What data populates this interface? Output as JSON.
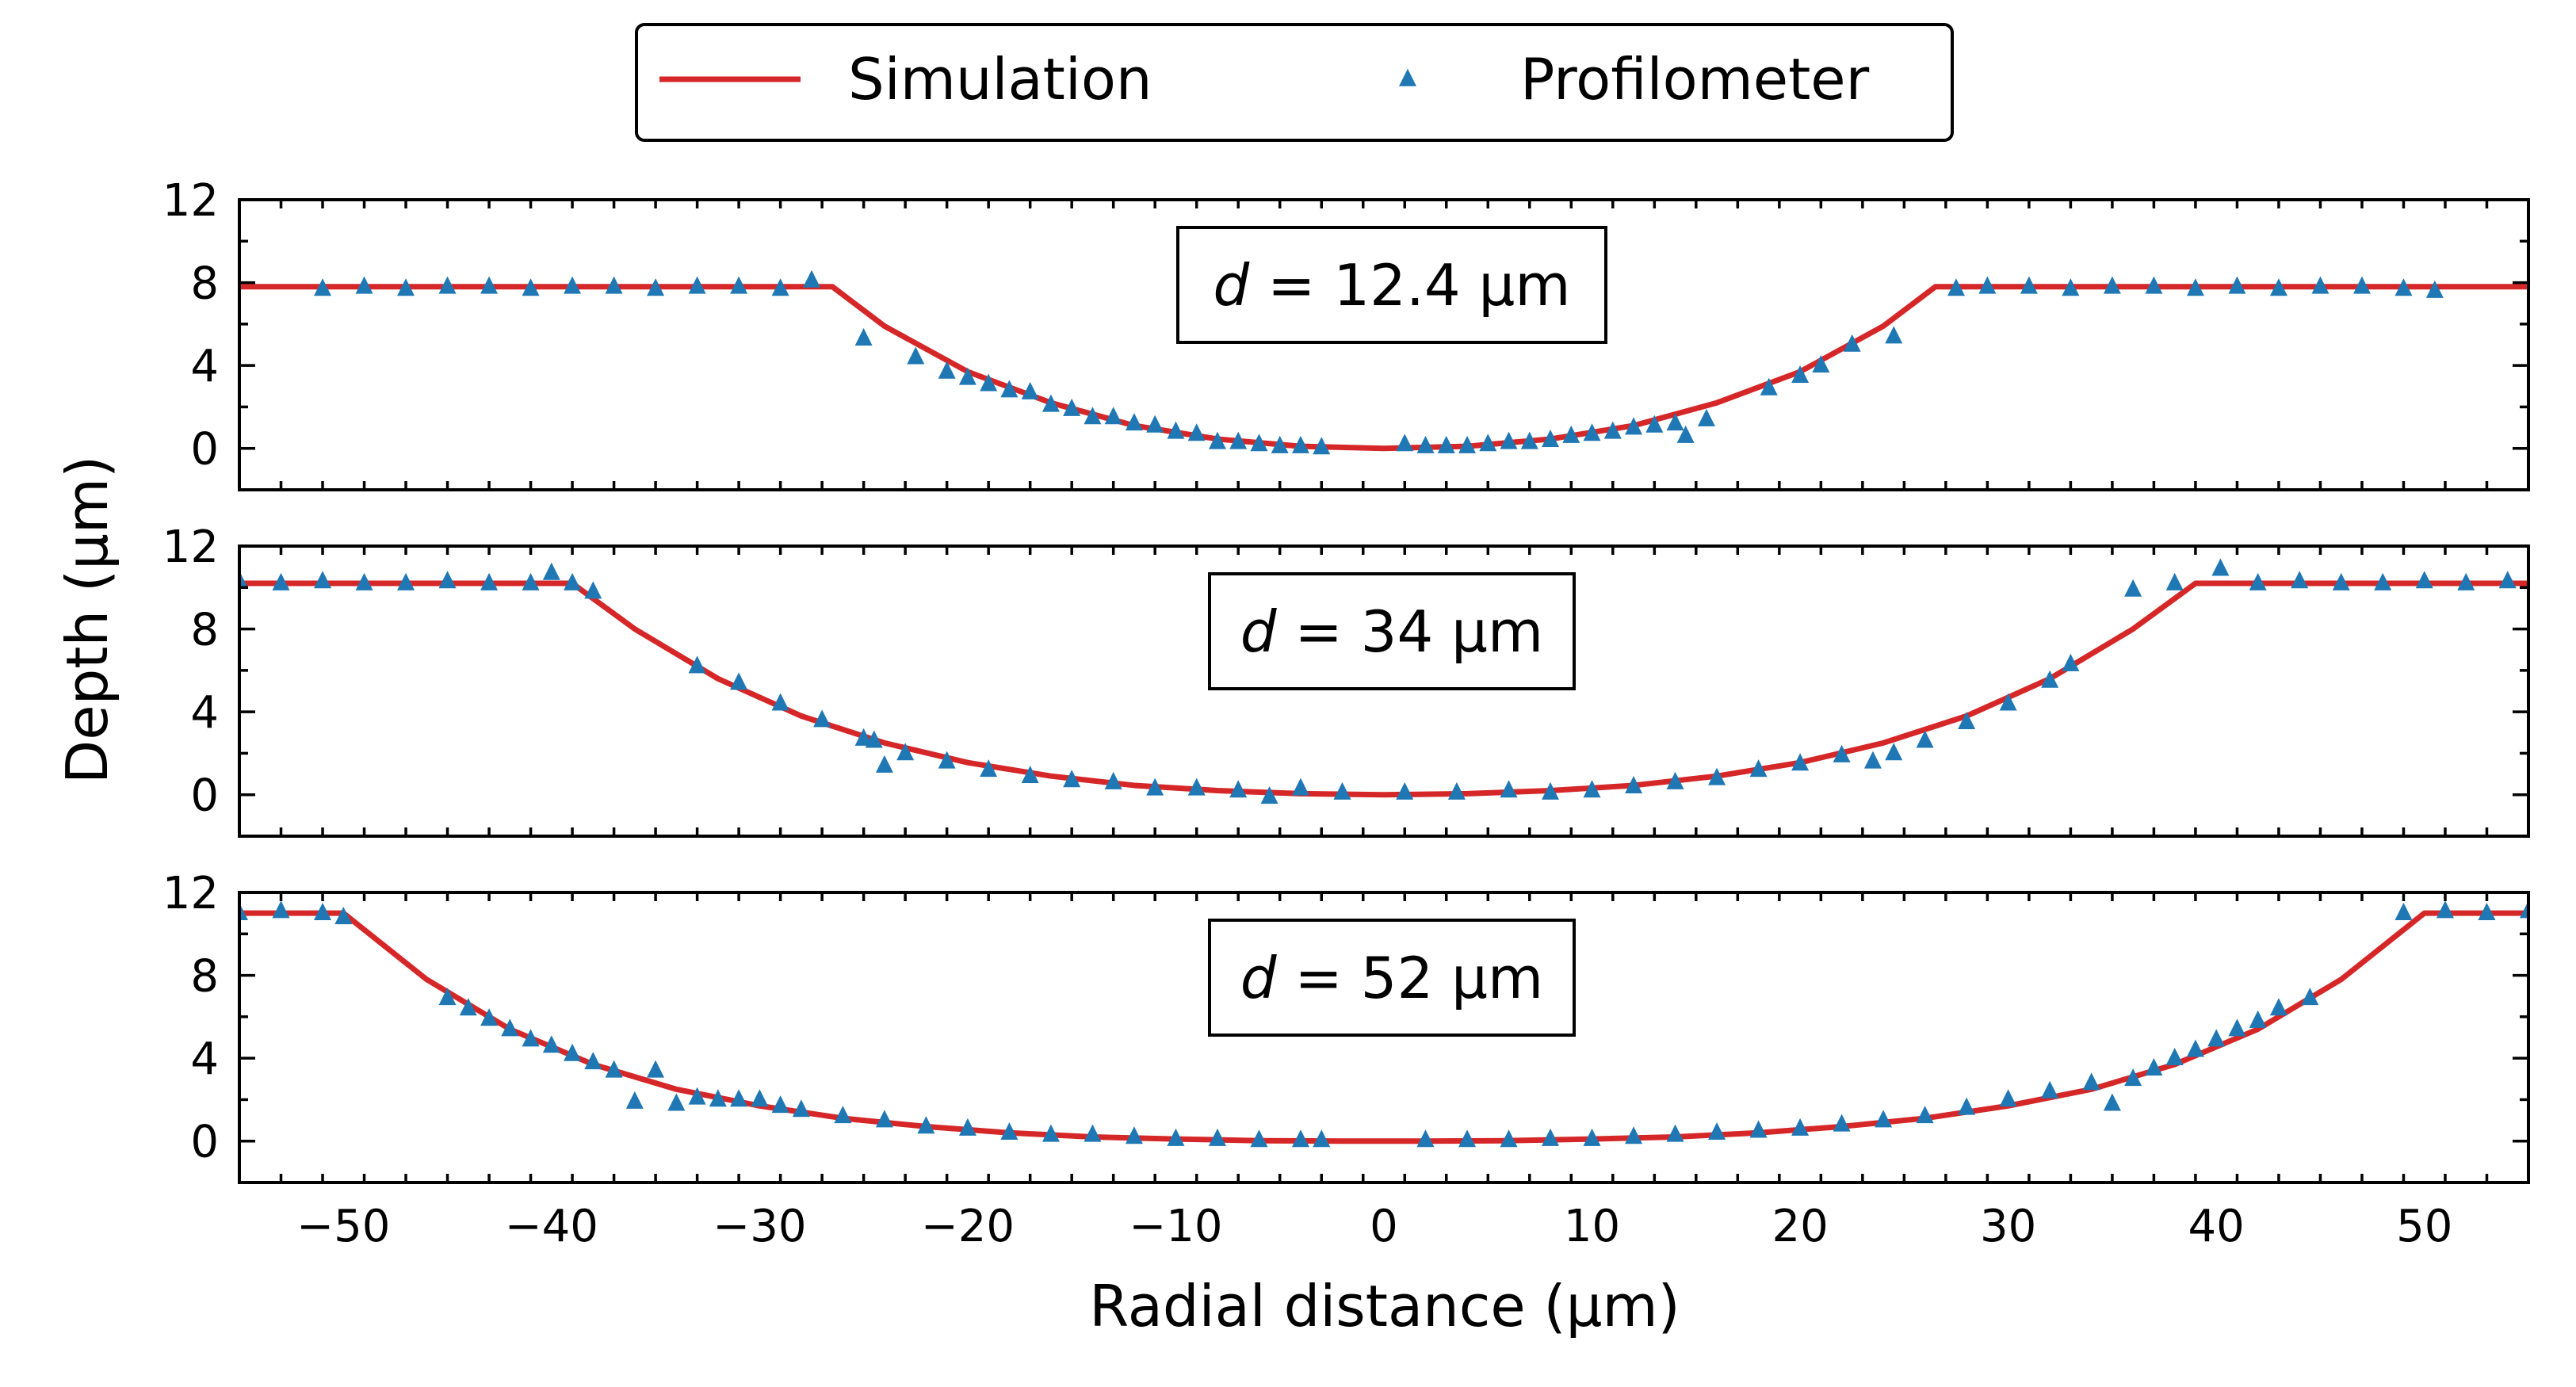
{
  "chart_data": {
    "type": "line",
    "xlabel": "Radial distance (µm)",
    "ylabel": "Depth (µm)",
    "xlim": [
      -55,
      55
    ],
    "ylim": [
      -2,
      12
    ],
    "xticks": [
      -50,
      -40,
      -30,
      -20,
      -10,
      0,
      10,
      20,
      30,
      40,
      50
    ],
    "xtick_labels": [
      "−50",
      "−40",
      "−30",
      "−20",
      "−10",
      "0",
      "10",
      "20",
      "30",
      "40",
      "50"
    ],
    "yticks": [
      0,
      4,
      8,
      12
    ],
    "ytick_labels": [
      "0",
      "4",
      "8",
      "12"
    ],
    "legend": {
      "placement": "top-center",
      "entries": [
        {
          "name": "Simulation",
          "marker": "line",
          "color": "#d62728"
        },
        {
          "name": "Profilometer",
          "marker": "triangle",
          "color": "#1f77b4"
        }
      ]
    },
    "panels": [
      {
        "annotation_italic": "d",
        "annotation_rest": " = 12.4 µm",
        "simulation": {
          "x": [
            -55,
            -26.5,
            -24,
            -20,
            -16,
            -12,
            -8,
            -4,
            0,
            4,
            8,
            12,
            16,
            20,
            24,
            26.5,
            55
          ],
          "y": [
            7.8,
            7.8,
            5.9,
            3.7,
            2.2,
            1.1,
            0.45,
            0.1,
            0,
            0.1,
            0.45,
            1.1,
            2.2,
            3.7,
            5.9,
            7.8,
            7.8
          ]
        },
        "profilometer": {
          "x": [
            -51,
            -49,
            -47,
            -45,
            -43,
            -41,
            -39,
            -37,
            -35,
            -33,
            -31,
            -29,
            -27.5,
            -25,
            -22.5,
            -21,
            -20,
            -19,
            -18,
            -17,
            -16,
            -15,
            -14,
            -13,
            -12,
            -11,
            -10,
            -9,
            -8,
            -7,
            -6,
            -5,
            -4,
            -3,
            1,
            2,
            3,
            4,
            5,
            6,
            7,
            8,
            9,
            10,
            11,
            12,
            13,
            14,
            14.5,
            15.5,
            18.5,
            20,
            21,
            22.5,
            24.5,
            27.5,
            29,
            31,
            33,
            35,
            37,
            39,
            41,
            43,
            45,
            47,
            49,
            50.5
          ],
          "y": [
            7.7,
            7.8,
            7.7,
            7.8,
            7.8,
            7.7,
            7.8,
            7.8,
            7.7,
            7.8,
            7.8,
            7.7,
            8.1,
            5.3,
            4.4,
            3.7,
            3.4,
            3.1,
            2.8,
            2.7,
            2.1,
            1.9,
            1.5,
            1.5,
            1.2,
            1.1,
            0.8,
            0.7,
            0.3,
            0.3,
            0.2,
            0.1,
            0.1,
            0.05,
            0.2,
            0.1,
            0.1,
            0.1,
            0.2,
            0.3,
            0.3,
            0.4,
            0.6,
            0.7,
            0.8,
            1.0,
            1.1,
            1.2,
            0.6,
            1.4,
            2.9,
            3.5,
            4.0,
            5.0,
            5.4,
            7.7,
            7.8,
            7.8,
            7.7,
            7.8,
            7.8,
            7.7,
            7.8,
            7.7,
            7.8,
            7.8,
            7.7,
            7.6
          ]
        }
      },
      {
        "annotation_italic": "d",
        "annotation_rest": " = 34 µm",
        "simulation": {
          "x": [
            -55,
            -39,
            -36,
            -32,
            -28,
            -24,
            -20,
            -16,
            -12,
            -8,
            -4,
            0,
            4,
            8,
            12,
            16,
            20,
            24,
            28,
            32,
            36,
            39,
            55
          ],
          "y": [
            10.2,
            10.2,
            8.0,
            5.6,
            3.8,
            2.5,
            1.55,
            0.9,
            0.45,
            0.2,
            0.05,
            0,
            0.05,
            0.2,
            0.45,
            0.9,
            1.55,
            2.5,
            3.8,
            5.6,
            8.0,
            10.2,
            10.2
          ]
        },
        "profilometer": {
          "x": [
            -55,
            -53,
            -51,
            -49,
            -47,
            -45,
            -43,
            -41,
            -40,
            -39,
            -38,
            -33,
            -31,
            -29,
            -27,
            -25,
            -24.5,
            -24,
            -23,
            -21,
            -19,
            -17,
            -15,
            -13,
            -11,
            -9,
            -7,
            -5.5,
            -4,
            -2,
            1,
            3.5,
            6,
            8,
            10,
            12,
            14,
            16,
            18,
            20,
            22,
            23.5,
            24.5,
            26,
            28,
            30,
            32,
            33,
            36,
            38,
            40.2,
            42,
            44,
            46,
            48,
            50,
            52,
            54
          ],
          "y": [
            10.3,
            10.2,
            10.3,
            10.2,
            10.2,
            10.3,
            10.2,
            10.2,
            10.7,
            10.2,
            9.8,
            6.2,
            5.4,
            4.4,
            3.6,
            2.7,
            2.6,
            1.4,
            2.0,
            1.6,
            1.2,
            0.9,
            0.7,
            0.6,
            0.3,
            0.3,
            0.2,
            -0.1,
            0.3,
            0.1,
            0.1,
            0.1,
            0.2,
            0.1,
            0.2,
            0.4,
            0.6,
            0.8,
            1.2,
            1.5,
            1.9,
            1.6,
            2.0,
            2.6,
            3.5,
            4.4,
            5.5,
            6.3,
            9.9,
            10.2,
            10.9,
            10.2,
            10.3,
            10.2,
            10.2,
            10.3,
            10.2,
            10.3
          ]
        }
      },
      {
        "annotation_italic": "d",
        "annotation_rest": " = 52 µm",
        "simulation": {
          "x": [
            -55,
            -50,
            -46,
            -42,
            -38,
            -34,
            -30,
            -26,
            -22,
            -18,
            -14,
            -10,
            -6,
            -2,
            0,
            2,
            6,
            10,
            14,
            18,
            22,
            26,
            30,
            34,
            38,
            42,
            46,
            50,
            55
          ],
          "y": [
            11.0,
            11.0,
            7.8,
            5.4,
            3.7,
            2.5,
            1.7,
            1.1,
            0.7,
            0.4,
            0.2,
            0.1,
            0.02,
            0,
            0,
            0,
            0.02,
            0.1,
            0.2,
            0.4,
            0.7,
            1.1,
            1.7,
            2.5,
            3.7,
            5.4,
            7.8,
            11.0,
            11.0
          ]
        },
        "profilometer": {
          "x": [
            -55,
            -53,
            -51,
            -50,
            -45,
            -44,
            -43,
            -42,
            -41,
            -40,
            -39,
            -38,
            -37,
            -36,
            -35,
            -34,
            -33,
            -32,
            -31,
            -30,
            -29,
            -28,
            -26,
            -24,
            -22,
            -20,
            -18,
            -16,
            -14,
            -12,
            -10,
            -8,
            -6,
            -4,
            -3,
            2,
            4,
            6,
            8,
            10,
            12,
            14,
            16,
            18,
            20,
            22,
            24,
            26,
            28,
            30,
            32,
            34,
            35,
            36,
            37,
            38,
            39,
            40,
            41,
            42,
            43,
            44.5,
            49,
            51,
            53,
            55
          ],
          "y": [
            11.0,
            11.1,
            11.0,
            10.8,
            6.9,
            6.4,
            5.9,
            5.4,
            4.9,
            4.6,
            4.2,
            3.8,
            3.4,
            1.9,
            3.4,
            1.8,
            2.1,
            2.0,
            2.0,
            2.0,
            1.7,
            1.5,
            1.2,
            1.0,
            0.7,
            0.6,
            0.4,
            0.3,
            0.3,
            0.2,
            0.1,
            0.1,
            0.05,
            0.05,
            0.05,
            0.05,
            0.05,
            0.05,
            0.1,
            0.1,
            0.2,
            0.3,
            0.4,
            0.5,
            0.6,
            0.8,
            1.0,
            1.2,
            1.6,
            2.0,
            2.4,
            2.8,
            1.8,
            3.0,
            3.5,
            4.0,
            4.4,
            4.9,
            5.4,
            5.8,
            6.4,
            6.9,
            11.0,
            11.1,
            11.0,
            11.1
          ]
        }
      }
    ]
  }
}
